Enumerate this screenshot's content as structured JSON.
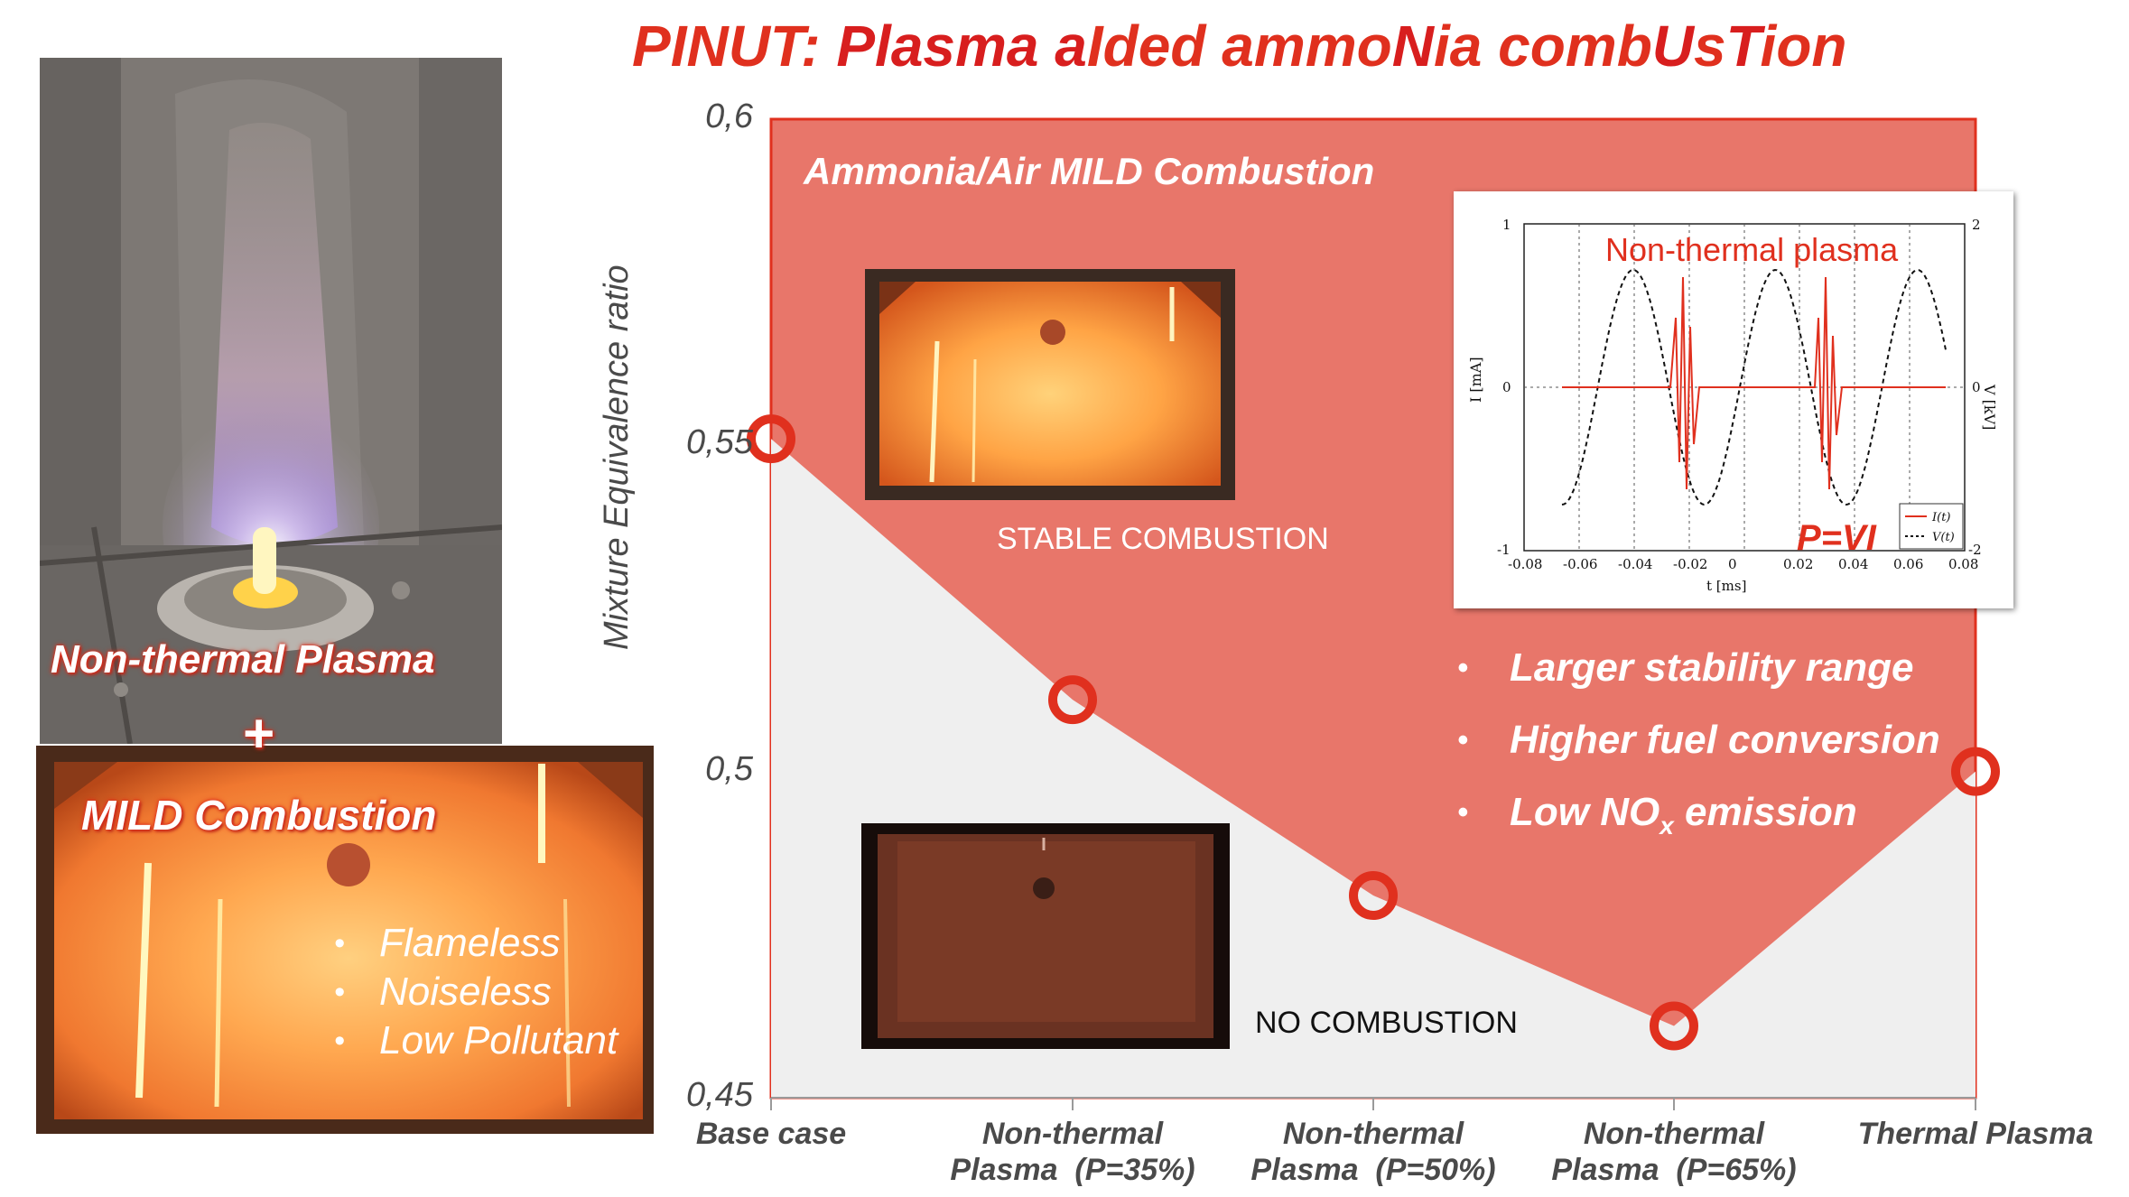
{
  "title": {
    "p1": "PINUT: ",
    "p2": "Plasma a",
    "p3": "I",
    "p4": "ded ammo",
    "p5": "N",
    "p6": "ia comb",
    "p7": "U",
    "p8": "s",
    "p9": "T",
    "p10": "ion"
  },
  "left_panel": {
    "plasma_label": "Non-thermal Plasma",
    "plus": "+",
    "mild_label": "MILD Combustion",
    "bullets": [
      "Flameless",
      "Noiseless",
      "Low Pollutant"
    ]
  },
  "chart_data": {
    "type": "line",
    "ylabel": "Mixture Equivalence ratio",
    "ylim": [
      0.45,
      0.6
    ],
    "yticks": [
      "0,6",
      "0,55",
      "0,5",
      "0,45"
    ],
    "categories": [
      "Base case",
      "Non-thermal\nPlasma  (P=35%)",
      "Non-thermal\nPlasma  (P=50%)",
      "Non-thermal\nPlasma  (P=65%)",
      "Thermal Plasma"
    ],
    "values": [
      0.551,
      0.511,
      0.481,
      0.461,
      0.5
    ],
    "region_above_label": "Ammonia/Air MILD Combustion",
    "stable_label": "STABLE COMBUSTION",
    "no_combustion_label": "NO COMBUSTION",
    "colors": {
      "stable_region": "#e8766a",
      "no_combustion_region": "#efefef",
      "marker": "#e0301e"
    }
  },
  "inset": {
    "title": "Non-thermal plasma",
    "formula": "P=VI",
    "ylabel_left": "I [mA]",
    "ylabel_right": "V [kV]",
    "xlabel": "t [ms]",
    "xticks": [
      "-0.08",
      "-0.06",
      "-0.04",
      "-0.02",
      "0",
      "0.02",
      "0.04",
      "0.06",
      "0.08"
    ],
    "yticks_left": [
      "1",
      "0",
      "-1"
    ],
    "yticks_right": [
      "2",
      "0",
      "-2"
    ],
    "legend": [
      "I(t)",
      "V(t)"
    ]
  },
  "benefits": {
    "b1": "Larger stability range",
    "b2": "Higher fuel conversion",
    "b3_pre": "Low NO",
    "b3_sub": "x",
    "b3_post": " emission"
  }
}
